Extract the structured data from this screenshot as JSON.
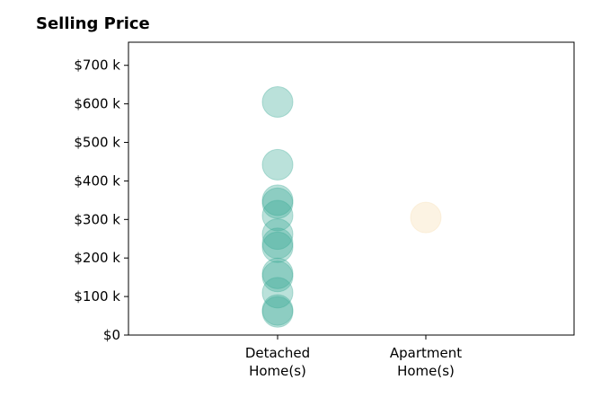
{
  "chart_data": {
    "type": "scatter",
    "title": "Selling Price",
    "xlabel": "",
    "ylabel": "",
    "categories": [
      "Detached\nHome(s)",
      "Apartment\nHome(s)"
    ],
    "ylim": [
      0,
      760
    ],
    "yticks": [
      0,
      100,
      200,
      300,
      400,
      500,
      600,
      700
    ],
    "ytick_labels": [
      "$0",
      "$100 k",
      "$200 k",
      "$300 k",
      "$400 k",
      "$500 k",
      "$600 k",
      "$700 k"
    ],
    "grid": false,
    "series": [
      {
        "category": "Detached\nHome(s)",
        "color": "#3aa896",
        "values": [
          605,
          442,
          350,
          342,
          310,
          262,
          238,
          228,
          160,
          152,
          110,
          65,
          60
        ]
      },
      {
        "category": "Apartment\nHome(s)",
        "color": "#f5deb0",
        "values": [
          305
        ]
      }
    ]
  }
}
